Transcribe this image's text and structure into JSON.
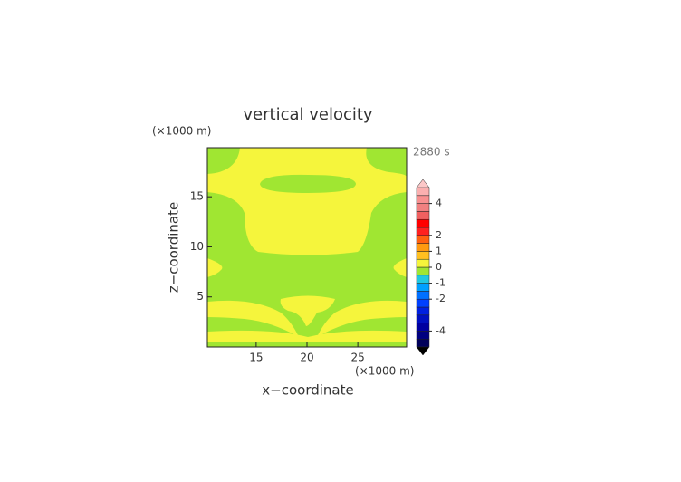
{
  "chart_data": {
    "type": "contour",
    "title": "vertical velocity",
    "time_label": "2880 s",
    "x_label": "x−coordinate",
    "y_label": "z−coordinate",
    "x_unit": "(×1000 m)",
    "y_unit": "(×1000 m)",
    "xlim": [
      10.2,
      29.8
    ],
    "ylim": [
      0,
      19.9
    ],
    "xticks": [
      15,
      20,
      25
    ],
    "yticks": [
      5,
      10,
      15
    ],
    "colorbar": {
      "lim": [
        -5,
        5
      ],
      "bounds": [
        -5,
        -4.5,
        -4,
        -3.5,
        -3,
        -2.5,
        -2,
        -1.5,
        -1,
        -0.5,
        0,
        0.5,
        1,
        1.5,
        2,
        2.5,
        3,
        3.5,
        4,
        4.5,
        5
      ],
      "colors": [
        "#00005a",
        "#000080",
        "#0000a0",
        "#0010c0",
        "#0020e0",
        "#0040ff",
        "#0070ff",
        "#00a0ff",
        "#20c8e0",
        "#a0e632",
        "#f5f53c",
        "#ffc020",
        "#ff9a10",
        "#ff6010",
        "#ff2020",
        "#ff0000",
        "#f06060",
        "#f08080",
        "#f89090",
        "#fbb0b0"
      ],
      "ticks": [
        -4,
        -2,
        -1,
        0,
        1,
        2,
        4
      ],
      "extend_colors": [
        "#000000",
        "#fcc8c8"
      ]
    }
  }
}
